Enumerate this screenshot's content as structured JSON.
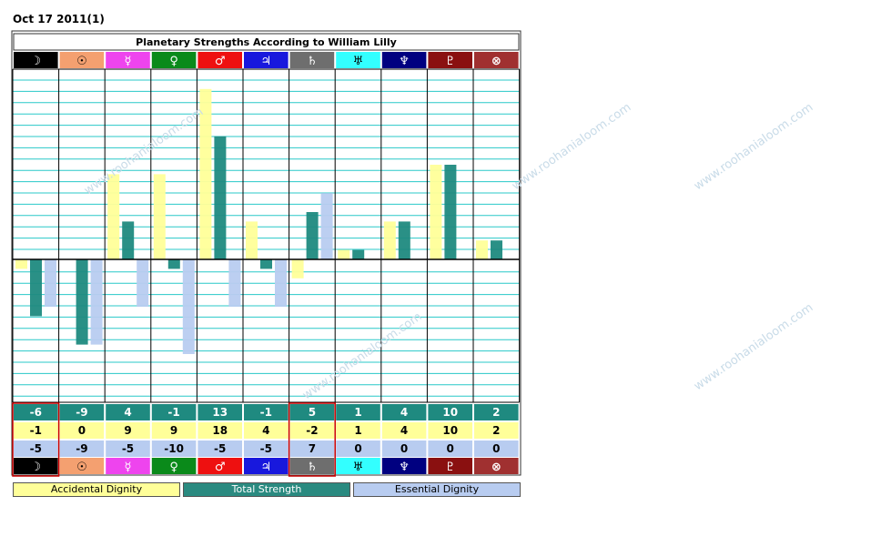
{
  "date_label": "Oct 17 2011(1)",
  "watermark": "www.roohanialoom.com",
  "colors": {
    "accidental": "#ffff99",
    "total": "#1f8a80",
    "essential": "#b8ccf0",
    "grid": "#28c8c8"
  },
  "chart_data": {
    "type": "bar",
    "title": "Planetary Strengths According to William Lilly",
    "categories": [
      "☽",
      "☉",
      "☿",
      "♀",
      "♂",
      "♃",
      "♄",
      "♅",
      "♆",
      "♇",
      "⊗"
    ],
    "symbol_colors": [
      {
        "bg": "#000000",
        "fg": "#ffffff"
      },
      {
        "bg": "#f4a070",
        "fg": "#000000"
      },
      {
        "bg": "#ee44ee",
        "fg": "#ffffff"
      },
      {
        "bg": "#0a8a1a",
        "fg": "#ffffff"
      },
      {
        "bg": "#ee1010",
        "fg": "#ffffff"
      },
      {
        "bg": "#1818dd",
        "fg": "#ffffff"
      },
      {
        "bg": "#6e6e6e",
        "fg": "#ffffff"
      },
      {
        "bg": "#33ffff",
        "fg": "#000000"
      },
      {
        "bg": "#000080",
        "fg": "#ffffff"
      },
      {
        "bg": "#8a1010",
        "fg": "#ffffff"
      },
      {
        "bg": "#a03030",
        "fg": "#ffffff"
      }
    ],
    "ylim": [
      -15,
      20
    ],
    "series": [
      {
        "name": "Accidental Dignity",
        "values": [
          -1,
          0,
          9,
          9,
          18,
          4,
          -2,
          1,
          4,
          10,
          2
        ]
      },
      {
        "name": "Total Strength",
        "values": [
          -6,
          -9,
          4,
          -1,
          13,
          -1,
          5,
          1,
          4,
          10,
          2
        ]
      },
      {
        "name": "Essential Dignity",
        "values": [
          -5,
          -9,
          -5,
          -10,
          -5,
          -5,
          7,
          0,
          0,
          0,
          0
        ]
      }
    ],
    "table_rows": [
      {
        "name": "Total Strength",
        "values": [
          "-6",
          "-9",
          "4",
          "-1",
          "13",
          "-1",
          "5",
          "1",
          "4",
          "10",
          "2"
        ]
      },
      {
        "name": "Accidental Dignity",
        "values": [
          "-1",
          "0",
          "9",
          "9",
          "18",
          "4",
          "-2",
          "1",
          "4",
          "10",
          "2"
        ]
      },
      {
        "name": "Essential Dignity",
        "values": [
          "-5",
          "-9",
          "-5",
          "-10",
          "-5",
          "-5",
          "7",
          "0",
          "0",
          "0",
          "0"
        ]
      }
    ],
    "legend": [
      "Accidental Dignity",
      "Total Strength",
      "Essential Dignity"
    ],
    "grid": true
  }
}
